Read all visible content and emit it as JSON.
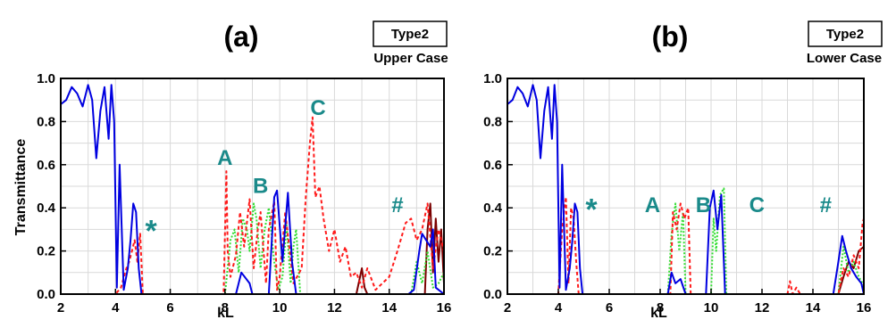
{
  "colors": {
    "blue": "#0000e0",
    "red": "#ff1a1a",
    "green": "#33dd33",
    "darkred": "#7a0000",
    "annotation": "#1a8a8a",
    "grid": "#d9d9d9"
  },
  "chart_data": [
    {
      "type": "line",
      "panel_label": "(a)",
      "legend_box": "Type2",
      "legend_sub": "Upper Case",
      "xlabel": "kL",
      "ylabel": "Transmittance",
      "xlim": [
        2,
        16
      ],
      "ylim": [
        0,
        1
      ],
      "xticks": [
        "2",
        "4",
        "6",
        "8",
        "10",
        "12",
        "14",
        "16"
      ],
      "yticks": [
        "0.0",
        "0.2",
        "0.4",
        "0.6",
        "0.8",
        "1.0"
      ],
      "grid": true,
      "annotations": [
        {
          "text": "A",
          "x": 8.0,
          "y": 0.6
        },
        {
          "text": "B",
          "x": 9.3,
          "y": 0.47
        },
        {
          "text": "C",
          "x": 11.4,
          "y": 0.83
        },
        {
          "text": "*",
          "x": 5.3,
          "y": 0.32
        },
        {
          "text": "#",
          "x": 14.3,
          "y": 0.38
        }
      ],
      "series": [
        {
          "color": "blue",
          "style": "solid",
          "x": [
            2.0,
            2.2,
            2.4,
            2.6,
            2.8,
            3.0,
            3.15,
            3.3,
            3.45,
            3.6,
            3.75,
            3.85,
            3.95,
            4.05,
            4.15,
            4.3,
            4.45,
            4.55,
            4.65,
            4.75,
            4.85,
            4.95,
            5.05,
            5.2,
            7.8,
            8.4,
            8.6,
            8.9,
            9.0,
            9.6,
            9.8,
            9.9,
            10.1,
            10.3,
            10.45,
            10.6,
            14.7,
            14.9,
            15.1,
            15.2,
            15.5,
            15.6,
            15.7,
            16.0
          ],
          "y": [
            0.88,
            0.9,
            0.96,
            0.93,
            0.87,
            0.97,
            0.9,
            0.63,
            0.85,
            0.96,
            0.72,
            0.97,
            0.8,
            0.03,
            0.6,
            0.02,
            0.12,
            0.25,
            0.42,
            0.38,
            0.12,
            0.0,
            0.0,
            0.0,
            0.0,
            0.0,
            0.1,
            0.05,
            0.0,
            0.0,
            0.45,
            0.48,
            0.15,
            0.47,
            0.15,
            0.0,
            0.0,
            0.02,
            0.2,
            0.28,
            0.22,
            0.3,
            0.03,
            0.0
          ]
        },
        {
          "color": "red",
          "style": "dashed",
          "x": [
            2.0,
            4.0,
            4.2,
            4.4,
            4.5,
            4.6,
            4.7,
            4.8,
            4.9,
            5.0,
            7.95,
            8.05,
            8.1,
            8.2,
            8.4,
            8.55,
            8.7,
            8.9,
            9.05,
            9.2,
            9.3,
            9.5,
            9.6,
            9.8,
            9.9,
            10.0,
            10.2,
            10.5,
            10.8,
            10.95,
            11.1,
            11.2,
            11.3,
            11.45,
            11.6,
            11.8,
            12.0,
            12.2,
            12.4,
            12.6,
            12.8,
            13.0,
            13.2,
            13.5,
            14.0,
            14.3,
            14.6,
            14.8,
            15.0,
            15.2,
            15.4,
            15.6,
            15.8,
            16.0
          ],
          "y": [
            0.0,
            0.0,
            0.03,
            0.12,
            0.15,
            0.2,
            0.25,
            0.15,
            0.28,
            0.0,
            0.0,
            0.57,
            0.2,
            0.08,
            0.18,
            0.38,
            0.22,
            0.44,
            0.12,
            0.3,
            0.38,
            0.05,
            0.3,
            0.43,
            0.02,
            0.08,
            0.38,
            0.05,
            0.12,
            0.45,
            0.7,
            0.82,
            0.45,
            0.5,
            0.35,
            0.2,
            0.3,
            0.15,
            0.22,
            0.08,
            0.1,
            0.03,
            0.12,
            0.02,
            0.08,
            0.2,
            0.33,
            0.35,
            0.25,
            0.3,
            0.42,
            0.12,
            0.3,
            0.2
          ]
        },
        {
          "color": "green",
          "style": "dotted",
          "x": [
            2.0,
            8.0,
            8.2,
            8.35,
            8.5,
            8.65,
            8.8,
            8.9,
            9.05,
            9.15,
            9.3,
            9.45,
            9.6,
            9.8,
            9.95,
            10.1,
            10.25,
            10.4,
            10.5,
            10.6,
            10.75,
            14.8,
            15.0,
            15.2,
            15.4,
            15.6,
            15.8,
            16.0
          ],
          "y": [
            0.0,
            0.0,
            0.25,
            0.3,
            0.1,
            0.35,
            0.3,
            0.2,
            0.42,
            0.35,
            0.12,
            0.3,
            0.4,
            0.15,
            0.02,
            0.08,
            0.32,
            0.05,
            0.22,
            0.3,
            0.0,
            0.0,
            0.15,
            0.05,
            0.2,
            0.03,
            0.05,
            0.1
          ]
        },
        {
          "color": "darkred",
          "style": "solid",
          "x": [
            2.0,
            12.8,
            12.9,
            13.0,
            13.1,
            13.2,
            15.3,
            15.4,
            15.5,
            15.6,
            15.7,
            15.8,
            15.9,
            16.0
          ],
          "y": [
            0.0,
            0.0,
            0.06,
            0.12,
            0.03,
            0.0,
            0.0,
            0.3,
            0.42,
            0.1,
            0.35,
            0.15,
            0.3,
            0.05
          ]
        }
      ]
    },
    {
      "type": "line",
      "panel_label": "(b)",
      "legend_box": "Type2",
      "legend_sub": "Lower Case",
      "xlabel": "kL",
      "ylabel": "",
      "xlim": [
        2,
        16
      ],
      "ylim": [
        0,
        1
      ],
      "xticks": [
        "2",
        "4",
        "6",
        "8",
        "10",
        "12",
        "14",
        "16"
      ],
      "yticks": [
        "0.0",
        "0.2",
        "0.4",
        "0.6",
        "0.8",
        "1.0"
      ],
      "grid": true,
      "annotations": [
        {
          "text": "A",
          "x": 7.7,
          "y": 0.38
        },
        {
          "text": "B",
          "x": 9.7,
          "y": 0.38
        },
        {
          "text": "C",
          "x": 11.8,
          "y": 0.38
        },
        {
          "text": "*",
          "x": 5.3,
          "y": 0.42
        },
        {
          "text": "#",
          "x": 14.5,
          "y": 0.38
        }
      ],
      "series": [
        {
          "color": "blue",
          "style": "solid",
          "x": [
            2.0,
            2.2,
            2.4,
            2.6,
            2.8,
            3.0,
            3.15,
            3.3,
            3.45,
            3.6,
            3.75,
            3.85,
            3.95,
            4.05,
            4.15,
            4.3,
            4.45,
            4.55,
            4.65,
            4.75,
            4.85,
            4.95,
            5.05,
            5.2,
            8.3,
            8.45,
            8.6,
            8.8,
            9.0,
            9.8,
            9.95,
            10.1,
            10.25,
            10.4,
            10.55,
            14.8,
            15.0,
            15.15,
            15.3,
            15.5,
            15.7,
            15.9,
            16.0
          ],
          "y": [
            0.88,
            0.9,
            0.96,
            0.93,
            0.87,
            0.97,
            0.9,
            0.63,
            0.85,
            0.96,
            0.72,
            0.97,
            0.8,
            0.03,
            0.6,
            0.02,
            0.12,
            0.25,
            0.42,
            0.38,
            0.12,
            0.0,
            0.0,
            0.0,
            0.0,
            0.1,
            0.05,
            0.07,
            0.0,
            0.0,
            0.4,
            0.48,
            0.3,
            0.46,
            0.0,
            0.0,
            0.15,
            0.27,
            0.2,
            0.12,
            0.08,
            0.05,
            0.0
          ]
        },
        {
          "color": "red",
          "style": "dashed",
          "x": [
            2.0,
            4.0,
            4.15,
            4.3,
            4.4,
            4.5,
            4.6,
            4.7,
            4.8,
            8.4,
            8.5,
            8.65,
            8.8,
            8.95,
            9.1,
            9.2,
            13.0,
            13.1,
            13.2,
            13.35,
            13.5,
            15.0,
            15.2,
            15.4,
            15.6,
            15.8,
            15.95,
            16.0
          ],
          "y": [
            0.0,
            0.0,
            0.3,
            0.45,
            0.05,
            0.4,
            0.35,
            0.15,
            0.0,
            0.0,
            0.38,
            0.3,
            0.42,
            0.35,
            0.4,
            0.0,
            0.0,
            0.06,
            0.0,
            0.03,
            0.0,
            0.0,
            0.12,
            0.08,
            0.18,
            0.12,
            0.33,
            0.35
          ]
        },
        {
          "color": "green",
          "style": "dotted",
          "x": [
            2.0,
            8.3,
            8.45,
            8.6,
            8.75,
            8.9,
            9.0,
            10.0,
            10.1,
            10.2,
            10.35,
            10.5,
            10.6,
            15.0,
            15.2,
            15.4,
            15.6,
            15.8,
            16.0
          ],
          "y": [
            0.0,
            0.0,
            0.28,
            0.42,
            0.2,
            0.38,
            0.0,
            0.0,
            0.35,
            0.2,
            0.46,
            0.49,
            0.0,
            0.0,
            0.22,
            0.1,
            0.15,
            0.08,
            0.04
          ]
        },
        {
          "color": "darkred",
          "style": "solid",
          "x": [
            2.0,
            15.0,
            15.2,
            15.4,
            15.6,
            15.8,
            16.0
          ],
          "y": [
            0.0,
            0.0,
            0.08,
            0.15,
            0.12,
            0.2,
            0.22
          ]
        }
      ]
    }
  ]
}
